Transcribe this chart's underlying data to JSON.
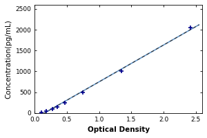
{
  "xlabel": "Optical Density",
  "ylabel": "Concentration(pg/mL)",
  "xlim": [
    0,
    2.6
  ],
  "ylim": [
    0,
    2600
  ],
  "xticks": [
    0,
    0.5,
    1.0,
    1.5,
    2.0,
    2.5
  ],
  "yticks": [
    0,
    500,
    1000,
    1500,
    2000,
    2500
  ],
  "data_x": [
    0.1,
    0.175,
    0.27,
    0.35,
    0.47,
    0.75,
    1.35,
    2.42
  ],
  "data_y": [
    18,
    50,
    100,
    150,
    250,
    500,
    1000,
    2050
  ],
  "marker_color": "#00008B",
  "line_color_solid": "#6699CC",
  "line_color_dash": "#333333",
  "marker_size": 5,
  "background_color": "#ffffff",
  "title_fontsize": 6.5,
  "label_fontsize": 7.5,
  "tick_fontsize": 6.5
}
